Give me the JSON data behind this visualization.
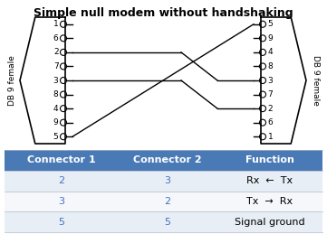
{
  "title": "Simple null modem without handshaking",
  "title_fontsize": 9,
  "bg_color": "#ffffff",
  "left_pins": [
    {
      "label": "1",
      "row": 0
    },
    {
      "label": "6",
      "row": 1
    },
    {
      "label": "2",
      "row": 2
    },
    {
      "label": "7",
      "row": 3
    },
    {
      "label": "3",
      "row": 4
    },
    {
      "label": "8",
      "row": 5
    },
    {
      "label": "4",
      "row": 6
    },
    {
      "label": "9",
      "row": 7
    },
    {
      "label": "5",
      "row": 8
    }
  ],
  "right_pins": [
    {
      "label": "5",
      "row": 0
    },
    {
      "label": "9",
      "row": 1
    },
    {
      "label": "4",
      "row": 2
    },
    {
      "label": "8",
      "row": 3
    },
    {
      "label": "3",
      "row": 4
    },
    {
      "label": "7",
      "row": 5
    },
    {
      "label": "2",
      "row": 6
    },
    {
      "label": "6",
      "row": 7
    },
    {
      "label": "1",
      "row": 8
    }
  ],
  "connections": [
    {
      "left_pin": "2",
      "right_pin": "3"
    },
    {
      "left_pin": "3",
      "right_pin": "2"
    },
    {
      "left_pin": "5",
      "right_pin": "5"
    }
  ],
  "table_header_color": "#4a7ab5",
  "table_header_text_color": "#ffffff",
  "table_row1_color": "#e8eef5",
  "table_row2_color": "#f5f7fa",
  "table_rows": [
    {
      "c1": "2",
      "c2": "3",
      "func": "Rx  ←  Tx"
    },
    {
      "c1": "3",
      "c2": "2",
      "func": "Tx  →  Rx"
    },
    {
      "c1": "5",
      "c2": "5",
      "func": "Signal ground"
    }
  ],
  "table_headers": [
    "Connector 1",
    "Connector 2",
    "Function"
  ],
  "label_color": "#4472c4",
  "db9_label": "DB 9 female"
}
